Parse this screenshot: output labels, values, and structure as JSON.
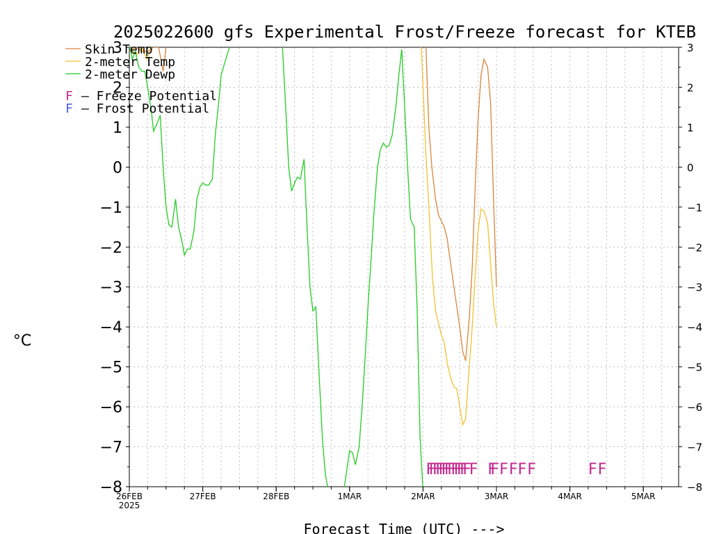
{
  "chart_data": {
    "type": "line",
    "title": "2025022600 gfs Experimental Frost/Freeze forecast for KTEB",
    "xlabel": "Forecast Time (UTC)  --->",
    "ylabel": "°C",
    "xlim": [
      0,
      7.5
    ],
    "ylim": [
      -8,
      3
    ],
    "grid": true,
    "legend_placement": "top-left",
    "x_ticks": [
      {
        "x": 0,
        "label": "26FEB"
      },
      {
        "x": 1,
        "label": "27FEB"
      },
      {
        "x": 2,
        "label": "28FEB"
      },
      {
        "x": 3,
        "label": "1MAR"
      },
      {
        "x": 4,
        "label": "2MAR"
      },
      {
        "x": 5,
        "label": "3MAR"
      },
      {
        "x": 6,
        "label": "4MAR"
      },
      {
        "x": 7,
        "label": "5MAR"
      }
    ],
    "x_subtick_label": "2025",
    "y_ticks": [
      3,
      2,
      1,
      0,
      -1,
      -2,
      -3,
      -4,
      -5,
      -6,
      -7,
      -8
    ],
    "y_tick_labels": [
      "3",
      "2",
      "1",
      "0",
      "−1",
      "−2",
      "−3",
      "−4",
      "−5",
      "−6",
      "−7",
      "−8"
    ],
    "series": [
      {
        "name": "Skin Temp",
        "color": "#d9843a",
        "points": [
          [
            0.0,
            2.9
          ],
          [
            0.1,
            3.0
          ],
          [
            0.17,
            2.9
          ],
          [
            0.25,
            2.9
          ],
          [
            0.33,
            3.0
          ],
          [
            0.4,
            3.0
          ],
          [
            0.46,
            2.4
          ],
          [
            0.5,
            3.0
          ],
          null,
          [
            3.96,
            3.4
          ],
          [
            4.04,
            3.0
          ],
          [
            4.08,
            1.0
          ],
          [
            4.12,
            0.0
          ],
          [
            4.17,
            -0.8
          ],
          [
            4.21,
            -1.2
          ],
          [
            4.25,
            -1.35
          ],
          [
            4.29,
            -1.5
          ],
          [
            4.33,
            -1.8
          ],
          [
            4.42,
            -3.0
          ],
          [
            4.5,
            -4.0
          ],
          [
            4.54,
            -4.6
          ],
          [
            4.58,
            -4.85
          ],
          [
            4.63,
            -3.8
          ],
          [
            4.67,
            -2.5
          ],
          [
            4.71,
            -0.5
          ],
          [
            4.75,
            1.2
          ],
          [
            4.79,
            2.3
          ],
          [
            4.83,
            2.7
          ],
          [
            4.88,
            2.5
          ],
          [
            4.92,
            1.6
          ],
          [
            4.96,
            -0.8
          ],
          [
            5.0,
            -3.0
          ]
        ]
      },
      {
        "name": "2-meter Temp",
        "color": "#f2c12e",
        "points": [
          [
            0.0,
            3.0
          ],
          [
            0.1,
            2.8
          ],
          [
            0.17,
            3.0
          ],
          [
            0.24,
            2.7
          ],
          [
            0.3,
            3.0
          ],
          null,
          [
            3.97,
            3.3
          ],
          [
            4.04,
            0.3
          ],
          [
            4.08,
            -1.0
          ],
          [
            4.13,
            -2.8
          ],
          [
            4.17,
            -3.6
          ],
          [
            4.21,
            -3.9
          ],
          [
            4.25,
            -4.2
          ],
          [
            4.29,
            -4.4
          ],
          [
            4.33,
            -4.9
          ],
          [
            4.38,
            -5.3
          ],
          [
            4.42,
            -5.5
          ],
          [
            4.46,
            -5.55
          ],
          [
            4.5,
            -6.0
          ],
          [
            4.54,
            -6.45
          ],
          [
            4.58,
            -6.3
          ],
          [
            4.63,
            -5.0
          ],
          [
            4.67,
            -4.0
          ],
          [
            4.71,
            -2.7
          ],
          [
            4.75,
            -1.6
          ],
          [
            4.79,
            -1.05
          ],
          [
            4.83,
            -1.1
          ],
          [
            4.88,
            -1.4
          ],
          [
            4.92,
            -2.4
          ],
          [
            4.96,
            -3.4
          ],
          [
            5.0,
            -4.0
          ]
        ]
      },
      {
        "name": "2-meter Dewp",
        "color": "#22cc22",
        "points": [
          [
            0.0,
            3.1
          ],
          [
            0.04,
            2.7
          ],
          [
            0.08,
            2.9
          ],
          [
            0.13,
            2.5
          ],
          [
            0.17,
            2.4
          ],
          [
            0.21,
            2.4
          ],
          [
            0.25,
            2.0
          ],
          [
            0.3,
            1.4
          ],
          [
            0.33,
            0.9
          ],
          [
            0.38,
            1.1
          ],
          [
            0.42,
            1.3
          ],
          [
            0.46,
            0.0
          ],
          [
            0.5,
            -1.0
          ],
          [
            0.54,
            -1.45
          ],
          [
            0.58,
            -1.5
          ],
          [
            0.63,
            -0.8
          ],
          [
            0.67,
            -1.5
          ],
          [
            0.71,
            -1.8
          ],
          [
            0.75,
            -2.2
          ],
          [
            0.79,
            -2.05
          ],
          [
            0.83,
            -2.05
          ],
          [
            0.88,
            -1.6
          ],
          [
            0.92,
            -0.8
          ],
          [
            0.96,
            -0.5
          ],
          [
            1.0,
            -0.4
          ],
          [
            1.04,
            -0.45
          ],
          [
            1.08,
            -0.45
          ],
          [
            1.13,
            -0.3
          ],
          [
            1.17,
            0.8
          ],
          [
            1.21,
            1.5
          ],
          [
            1.25,
            2.3
          ],
          [
            1.33,
            2.8
          ],
          [
            1.38,
            3.1
          ],
          null,
          [
            2.08,
            3.2
          ],
          [
            2.13,
            1.5
          ],
          [
            2.17,
            0.0
          ],
          [
            2.21,
            -0.6
          ],
          [
            2.25,
            -0.4
          ],
          [
            2.29,
            -0.25
          ],
          [
            2.33,
            -0.3
          ],
          [
            2.38,
            0.2
          ],
          [
            2.42,
            -1.5
          ],
          [
            2.46,
            -3.0
          ],
          [
            2.5,
            -3.6
          ],
          [
            2.54,
            -3.5
          ],
          [
            2.58,
            -5.0
          ],
          [
            2.63,
            -6.8
          ],
          [
            2.67,
            -7.7
          ],
          [
            2.71,
            -8.1
          ],
          null,
          [
            2.92,
            -8.1
          ],
          [
            2.96,
            -7.6
          ],
          [
            3.0,
            -7.1
          ],
          [
            3.04,
            -7.15
          ],
          [
            3.08,
            -7.45
          ],
          [
            3.13,
            -7.0
          ],
          [
            3.17,
            -6.0
          ],
          [
            3.21,
            -4.8
          ],
          [
            3.25,
            -3.5
          ],
          [
            3.29,
            -2.4
          ],
          [
            3.33,
            -1.2
          ],
          [
            3.38,
            0.0
          ],
          [
            3.42,
            0.45
          ],
          [
            3.46,
            0.6
          ],
          [
            3.5,
            0.5
          ],
          [
            3.54,
            0.55
          ],
          [
            3.58,
            0.8
          ],
          [
            3.63,
            1.5
          ],
          [
            3.67,
            2.3
          ],
          [
            3.71,
            2.95
          ],
          [
            3.75,
            1.5
          ],
          [
            3.79,
            0.0
          ],
          [
            3.83,
            -1.3
          ],
          [
            3.88,
            -1.5
          ],
          [
            3.92,
            -3.6
          ],
          [
            3.96,
            -6.8
          ],
          [
            4.0,
            -8.1
          ]
        ]
      }
    ],
    "potential_markers": [
      {
        "x": 4.04,
        "kind": "freeze"
      },
      {
        "x": 4.08,
        "kind": "freeze"
      },
      {
        "x": 4.13,
        "kind": "freeze"
      },
      {
        "x": 4.17,
        "kind": "freeze"
      },
      {
        "x": 4.21,
        "kind": "freeze"
      },
      {
        "x": 4.25,
        "kind": "freeze"
      },
      {
        "x": 4.29,
        "kind": "freeze"
      },
      {
        "x": 4.33,
        "kind": "freeze"
      },
      {
        "x": 4.38,
        "kind": "freeze"
      },
      {
        "x": 4.42,
        "kind": "freeze"
      },
      {
        "x": 4.46,
        "kind": "freeze"
      },
      {
        "x": 4.5,
        "kind": "freeze"
      },
      {
        "x": 4.54,
        "kind": "freeze"
      },
      {
        "x": 4.63,
        "kind": "freeze"
      },
      {
        "x": 4.88,
        "kind": "freeze"
      },
      {
        "x": 4.92,
        "kind": "freeze"
      },
      {
        "x": 5.04,
        "kind": "freeze"
      },
      {
        "x": 5.17,
        "kind": "freeze"
      },
      {
        "x": 5.29,
        "kind": "freeze"
      },
      {
        "x": 5.42,
        "kind": "freeze"
      },
      {
        "x": 6.25,
        "kind": "freeze"
      },
      {
        "x": 6.38,
        "kind": "freeze"
      }
    ],
    "marker_y": -7.55,
    "marker_char": "F",
    "annotations": [
      {
        "char": "F",
        "text": "–  Freeze Potential",
        "color": "#c2288f"
      },
      {
        "char": "F",
        "text": "–  Frost Potential",
        "color": "#4a5be0"
      }
    ]
  }
}
